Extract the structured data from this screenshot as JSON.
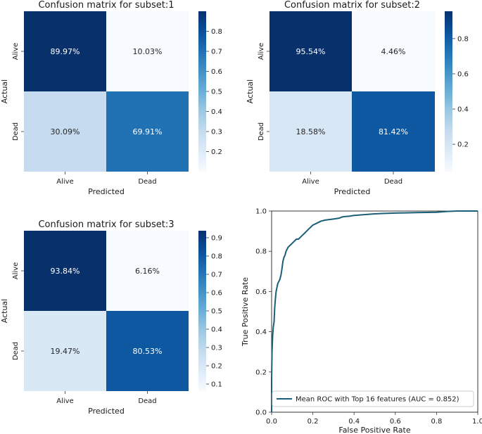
{
  "chart_data": [
    {
      "type": "heatmap",
      "title": "Confusion matrix for subset:1",
      "xlabel": "Predicted",
      "ylabel": "Actual",
      "x_categories": [
        "Alive",
        "Dead"
      ],
      "y_categories": [
        "Alive",
        "Dead"
      ],
      "values": [
        [
          0.8997,
          0.1003
        ],
        [
          0.3009,
          0.6991
        ]
      ],
      "labels": [
        [
          "89.97%",
          "10.03%"
        ],
        [
          "30.09%",
          "69.91%"
        ]
      ],
      "colorbar": {
        "range": [
          0.1003,
          0.8997
        ],
        "ticks": [
          0.2,
          0.3,
          0.4,
          0.5,
          0.6,
          0.7,
          0.8
        ],
        "tick_labels": [
          "0.2",
          "0.3",
          "0.4",
          "0.5",
          "0.6",
          "0.7",
          "0.8"
        ]
      }
    },
    {
      "type": "heatmap",
      "title": "Confusion matrix for subset:2",
      "xlabel": "Predicted",
      "ylabel": "Actual",
      "x_categories": [
        "Alive",
        "Dead"
      ],
      "y_categories": [
        "Alive",
        "Dead"
      ],
      "values": [
        [
          0.9554,
          0.0446
        ],
        [
          0.1858,
          0.8142
        ]
      ],
      "labels": [
        [
          "95.54%",
          "4.46%"
        ],
        [
          "18.58%",
          "81.42%"
        ]
      ],
      "colorbar": {
        "range": [
          0.0446,
          0.9554
        ],
        "ticks": [
          0.2,
          0.4,
          0.6,
          0.8
        ],
        "tick_labels": [
          "0.2",
          "0.4",
          "0.6",
          "0.8"
        ]
      }
    },
    {
      "type": "heatmap",
      "title": "Confusion matrix for subset:3",
      "xlabel": "Predicted",
      "ylabel": "Actual",
      "x_categories": [
        "Alive",
        "Dead"
      ],
      "y_categories": [
        "Alive",
        "Dead"
      ],
      "values": [
        [
          0.9384,
          0.0616
        ],
        [
          0.1947,
          0.8053
        ]
      ],
      "labels": [
        [
          "93.84%",
          "6.16%"
        ],
        [
          "19.47%",
          "80.53%"
        ]
      ],
      "colorbar": {
        "range": [
          0.0616,
          0.9384
        ],
        "ticks": [
          0.1,
          0.2,
          0.3,
          0.4,
          0.5,
          0.6,
          0.7,
          0.8,
          0.9
        ],
        "tick_labels": [
          "0.1",
          "0.2",
          "0.3",
          "0.4",
          "0.5",
          "0.6",
          "0.7",
          "0.8",
          "0.9"
        ]
      }
    },
    {
      "type": "line",
      "title": "",
      "xlabel": "False Positive Rate",
      "ylabel": "True Positive Rate",
      "xlim": [
        0,
        1
      ],
      "ylim": [
        0,
        1
      ],
      "xticks": [
        0,
        0.2,
        0.4,
        0.6,
        0.8,
        1.0
      ],
      "xtick_labels": [
        "0.0",
        "0.2",
        "0.4",
        "0.6",
        "0.8",
        "1.0"
      ],
      "yticks": [
        0,
        0.2,
        0.4,
        0.6,
        0.8,
        1.0
      ],
      "ytick_labels": [
        "0.0",
        "0.2",
        "0.4",
        "0.6",
        "0.8",
        "1.0"
      ],
      "legend_position": "lower-right",
      "series": [
        {
          "name": "Mean ROC with Top 16 features (AUC = 0.852)",
          "color": "#1b5f77",
          "x": [
            0,
            0,
            0.002,
            0.005,
            0.008,
            0.012,
            0.015,
            0.018,
            0.022,
            0.026,
            0.03,
            0.035,
            0.04,
            0.045,
            0.05,
            0.055,
            0.06,
            0.065,
            0.07,
            0.075,
            0.08,
            0.09,
            0.1,
            0.11,
            0.12,
            0.13,
            0.14,
            0.15,
            0.16,
            0.17,
            0.18,
            0.2,
            0.22,
            0.24,
            0.26,
            0.3,
            0.33,
            0.34,
            0.35,
            0.38,
            0.4,
            0.45,
            0.5,
            0.55,
            0.6,
            0.65,
            0.7,
            0.75,
            0.8,
            0.85,
            0.9,
            0.95,
            1.0
          ],
          "y": [
            0,
            0.16,
            0.3,
            0.38,
            0.42,
            0.45,
            0.52,
            0.56,
            0.6,
            0.62,
            0.64,
            0.65,
            0.66,
            0.68,
            0.71,
            0.75,
            0.77,
            0.78,
            0.8,
            0.81,
            0.82,
            0.83,
            0.84,
            0.85,
            0.86,
            0.86,
            0.87,
            0.88,
            0.89,
            0.9,
            0.91,
            0.93,
            0.94,
            0.95,
            0.955,
            0.96,
            0.965,
            0.97,
            0.972,
            0.975,
            0.978,
            0.982,
            0.986,
            0.988,
            0.99,
            0.991,
            0.992,
            0.993,
            0.994,
            0.998,
            1.0,
            1.0,
            1.0
          ]
        }
      ]
    }
  ]
}
